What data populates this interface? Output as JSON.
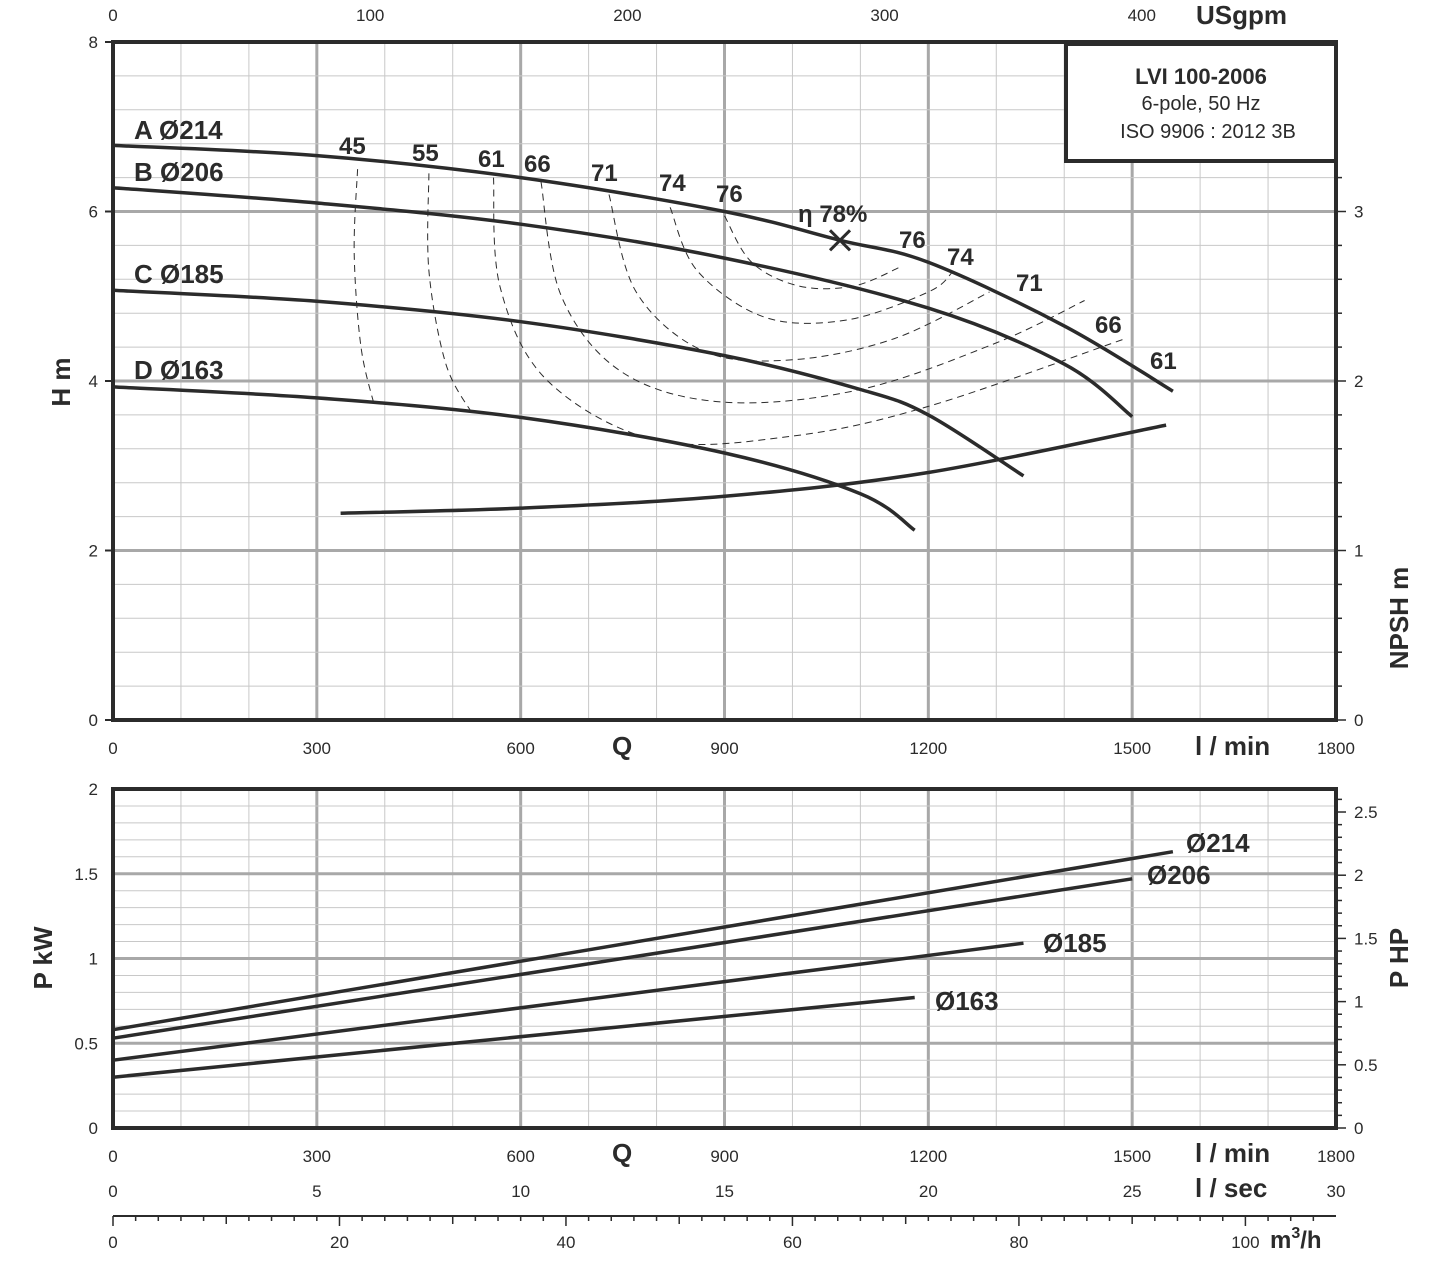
{
  "chart_data": [
    {
      "type": "line",
      "name": "head",
      "top_axis_label": "USgpm",
      "top_ticks": [
        "0",
        "100",
        "200",
        "300",
        "400"
      ],
      "y_axis_label": "H m",
      "y_right_axis_label": "NPSH m",
      "x_axis_q": "Q",
      "x_axis_unit": "l / min",
      "x_ticks": [
        "0",
        "300",
        "600",
        "900",
        "1200",
        "1500",
        "1800"
      ],
      "y_ticks": [
        "0",
        "2",
        "4",
        "6",
        "8"
      ],
      "npsh_ticks": [
        "0",
        "1",
        "2",
        "3"
      ],
      "xlim": [
        0,
        1800
      ],
      "ylim": [
        0,
        8
      ],
      "npsh_lim": [
        0,
        4
      ],
      "info_box": {
        "model": "LVI 100-2006",
        "line2": "6-pole, 50 Hz",
        "line3": "ISO 9906 : 2012 3B"
      },
      "series": [
        {
          "name": "A Ø214",
          "points": [
            [
              0,
              6.78
            ],
            [
              300,
              6.66
            ],
            [
              600,
              6.4
            ],
            [
              900,
              6.0
            ],
            [
              1070,
              5.66
            ],
            [
              1200,
              5.4
            ],
            [
              1400,
              4.65
            ],
            [
              1560,
              3.88
            ]
          ]
        },
        {
          "name": "B Ø206",
          "points": [
            [
              0,
              6.28
            ],
            [
              300,
              6.1
            ],
            [
              600,
              5.85
            ],
            [
              900,
              5.45
            ],
            [
              1200,
              4.86
            ],
            [
              1400,
              4.2
            ],
            [
              1500,
              3.58
            ]
          ]
        },
        {
          "name": "C Ø185",
          "points": [
            [
              0,
              5.07
            ],
            [
              300,
              4.94
            ],
            [
              600,
              4.7
            ],
            [
              900,
              4.3
            ],
            [
              1100,
              3.9
            ],
            [
              1200,
              3.6
            ],
            [
              1340,
              2.88
            ]
          ]
        },
        {
          "name": "D Ø163",
          "points": [
            [
              0,
              3.93
            ],
            [
              300,
              3.8
            ],
            [
              600,
              3.57
            ],
            [
              900,
              3.15
            ],
            [
              1100,
              2.67
            ],
            [
              1180,
              2.24
            ]
          ]
        }
      ],
      "npsh_curve": [
        [
          335,
          1.22
        ],
        [
          600,
          1.25
        ],
        [
          900,
          1.32
        ],
        [
          1200,
          1.46
        ],
        [
          1550,
          1.74
        ]
      ],
      "efficiency_label": "η 78%",
      "best_efficiency_point": [
        1070,
        5.66
      ],
      "efficiency_contours": [
        {
          "label": "45",
          "points": [
            [
              360,
              6.5
            ],
            [
              355,
              5.5
            ],
            [
              365,
              4.4
            ],
            [
              385,
              3.7
            ]
          ]
        },
        {
          "label": "55",
          "points": [
            [
              465,
              6.45
            ],
            [
              465,
              5.3
            ],
            [
              490,
              4.2
            ],
            [
              530,
              3.6
            ]
          ]
        },
        {
          "label": "61",
          "points": [
            [
              560,
              6.4
            ],
            [
              570,
              5.1
            ],
            [
              640,
              4.0
            ],
            [
              800,
              3.3
            ],
            [
              1000,
              3.35
            ],
            [
              1200,
              3.7
            ],
            [
              1490,
              4.5
            ]
          ]
        },
        {
          "label": "66",
          "points": [
            [
              630,
              6.35
            ],
            [
              660,
              5.0
            ],
            [
              750,
              4.1
            ],
            [
              900,
              3.75
            ],
            [
              1100,
              3.9
            ],
            [
              1300,
              4.45
            ],
            [
              1430,
              4.95
            ]
          ]
        },
        {
          "label": "71",
          "points": [
            [
              730,
              6.2
            ],
            [
              770,
              5.05
            ],
            [
              870,
              4.35
            ],
            [
              1000,
              4.25
            ],
            [
              1150,
              4.5
            ],
            [
              1290,
              5.05
            ]
          ]
        },
        {
          "label": "74",
          "points": [
            [
              820,
              6.05
            ],
            [
              860,
              5.3
            ],
            [
              960,
              4.75
            ],
            [
              1080,
              4.72
            ],
            [
              1200,
              5.05
            ],
            [
              1235,
              5.28
            ]
          ]
        },
        {
          "label": "76",
          "points": [
            [
              900,
              5.95
            ],
            [
              940,
              5.4
            ],
            [
              1010,
              5.12
            ],
            [
              1090,
              5.12
            ],
            [
              1160,
              5.35
            ]
          ]
        }
      ],
      "right_contour_labels": [
        "76",
        "74",
        "71",
        "66",
        "61"
      ]
    },
    {
      "type": "line",
      "name": "power",
      "y_axis_label": "P kW",
      "y_right_axis_label": "P HP",
      "x_axis_q": "Q",
      "x_axis_unit": "l / min",
      "sec_axis_unit": "l / sec",
      "m3h_axis_unit": "m3/h",
      "x_ticks": [
        "0",
        "300",
        "600",
        "900",
        "1200",
        "1500",
        "1800"
      ],
      "sec_ticks": [
        "0",
        "5",
        "10",
        "15",
        "20",
        "25",
        "30"
      ],
      "m3h_ticks": [
        "0",
        "20",
        "40",
        "60",
        "80",
        "100"
      ],
      "y_ticks": [
        "0",
        "0.5",
        "1",
        "1.5",
        "2"
      ],
      "hp_ticks": [
        "0",
        "0.5",
        "1",
        "1.5",
        "2",
        "2.5"
      ],
      "xlim": [
        0,
        1800
      ],
      "ylim": [
        0,
        2
      ],
      "series": [
        {
          "name": "Ø214",
          "points": [
            [
              0,
              0.58
            ],
            [
              1560,
              1.63
            ]
          ]
        },
        {
          "name": "Ø206",
          "points": [
            [
              0,
              0.53
            ],
            [
              1500,
              1.47
            ]
          ]
        },
        {
          "name": "Ø185",
          "points": [
            [
              0,
              0.4
            ],
            [
              1340,
              1.09
            ]
          ]
        },
        {
          "name": "Ø163",
          "points": [
            [
              0,
              0.3
            ],
            [
              1180,
              0.77
            ]
          ]
        }
      ]
    }
  ]
}
